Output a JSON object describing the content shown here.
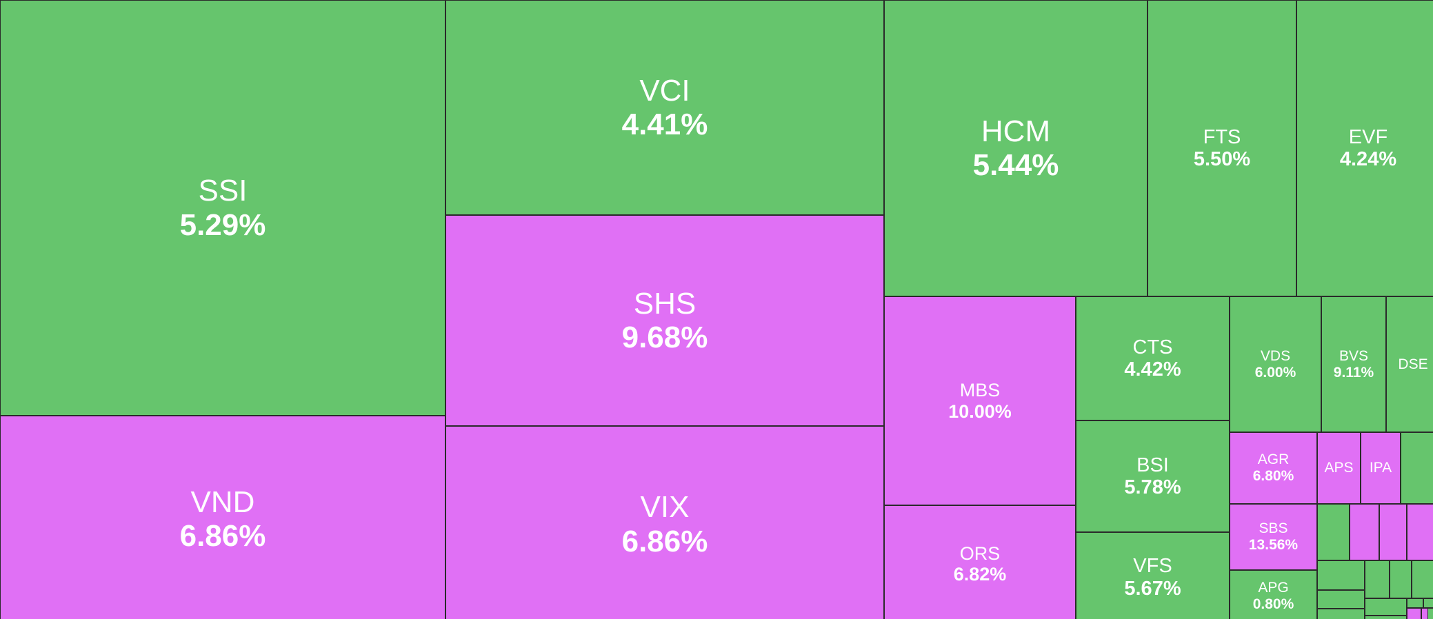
{
  "colors": {
    "up": "#66c56d",
    "ceiling": "#e070f5",
    "border": "#2a2a2a",
    "text": "#ffffff"
  },
  "chart_data": {
    "type": "treemap",
    "title": "",
    "items": [
      {
        "symbol": "SSI",
        "change": "5.29%",
        "value": 5.29,
        "status": "up"
      },
      {
        "symbol": "VND",
        "change": "6.86%",
        "value": 6.86,
        "status": "ceiling"
      },
      {
        "symbol": "VCI",
        "change": "4.41%",
        "value": 4.41,
        "status": "up"
      },
      {
        "symbol": "SHS",
        "change": "9.68%",
        "value": 9.68,
        "status": "ceiling"
      },
      {
        "symbol": "VIX",
        "change": "6.86%",
        "value": 6.86,
        "status": "ceiling"
      },
      {
        "symbol": "HCM",
        "change": "5.44%",
        "value": 5.44,
        "status": "up"
      },
      {
        "symbol": "FTS",
        "change": "5.50%",
        "value": 5.5,
        "status": "up"
      },
      {
        "symbol": "EVF",
        "change": "4.24%",
        "value": 4.24,
        "status": "up"
      },
      {
        "symbol": "MBS",
        "change": "10.00%",
        "value": 10.0,
        "status": "ceiling"
      },
      {
        "symbol": "ORS",
        "change": "6.82%",
        "value": 6.82,
        "status": "ceiling"
      },
      {
        "symbol": "CTS",
        "change": "4.42%",
        "value": 4.42,
        "status": "up"
      },
      {
        "symbol": "BSI",
        "change": "5.78%",
        "value": 5.78,
        "status": "up"
      },
      {
        "symbol": "VFS",
        "change": "5.67%",
        "value": 5.67,
        "status": "up"
      },
      {
        "symbol": "VDS",
        "change": "6.00%",
        "value": 6.0,
        "status": "up"
      },
      {
        "symbol": "BVS",
        "change": "9.11%",
        "value": 9.11,
        "status": "up"
      },
      {
        "symbol": "DSE",
        "change": "",
        "status": "up"
      },
      {
        "symbol": "AGR",
        "change": "6.80%",
        "value": 6.8,
        "status": "ceiling"
      },
      {
        "symbol": "APS",
        "change": "",
        "status": "ceiling"
      },
      {
        "symbol": "IPA",
        "change": "",
        "status": "ceiling"
      },
      {
        "symbol": "SBS",
        "change": "13.56%",
        "value": 13.56,
        "status": "ceiling"
      },
      {
        "symbol": "APG",
        "change": "0.80%",
        "value": 0.8,
        "status": "up"
      },
      {
        "symbol": "",
        "change": "",
        "status": "up"
      },
      {
        "symbol": "",
        "change": "",
        "status": "up"
      },
      {
        "symbol": "",
        "change": "",
        "status": "ceiling"
      },
      {
        "symbol": "",
        "change": "",
        "status": "ceiling"
      },
      {
        "symbol": "",
        "change": "",
        "status": "ceiling"
      },
      {
        "symbol": "",
        "change": "",
        "status": "up"
      },
      {
        "symbol": "",
        "change": "",
        "status": "up"
      },
      {
        "symbol": "",
        "change": "",
        "status": "up"
      },
      {
        "symbol": "",
        "change": "",
        "status": "up"
      },
      {
        "symbol": "",
        "change": "",
        "status": "up"
      },
      {
        "symbol": "",
        "change": "",
        "status": "up"
      },
      {
        "symbol": "",
        "change": "",
        "status": "up"
      },
      {
        "symbol": "",
        "change": "",
        "status": "up"
      },
      {
        "symbol": "",
        "change": "",
        "status": "up"
      },
      {
        "symbol": "",
        "change": "",
        "status": "up"
      },
      {
        "symbol": "",
        "change": "",
        "status": "up"
      },
      {
        "symbol": "",
        "change": "",
        "status": "up"
      },
      {
        "symbol": "",
        "change": "",
        "status": "ceiling"
      },
      {
        "symbol": "",
        "change": "",
        "status": "ceiling"
      }
    ]
  }
}
